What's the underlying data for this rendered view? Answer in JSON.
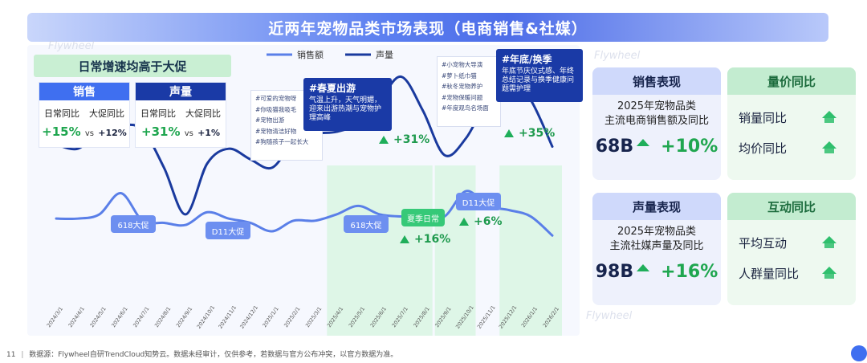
{
  "title": "近两年宠物品类市场表现（电商销售&社媒）",
  "subtitle": "日常增速均高于大促",
  "kpi": {
    "sales": {
      "head": "销售",
      "label_daily": "日常同比",
      "label_promo": "大促同比",
      "daily": "+15%",
      "vs": "vs",
      "promo": "+12%"
    },
    "volume": {
      "head": "声量",
      "label_daily": "日常同比",
      "label_promo": "大促同比",
      "daily": "+31%",
      "vs": "vs",
      "promo": "+1%"
    }
  },
  "annotations": {
    "spring_list": [
      "#可爱的宠物呀",
      "#你吸猫我吸毛",
      "#宠物出游",
      "#宠物清洁好物",
      "#狗随孩子一起长大"
    ],
    "spring_note_title": "#春夏出游",
    "spring_note_body": "气温上升，天气明媚，迎来出游热潮与宠物护理高峰",
    "autumn_list": [
      "#小宠物大导演",
      "#萝卜纸巾猫",
      "#秋冬宠物养护",
      "#宠物保暖问题",
      "#年度观鸟名场面"
    ],
    "year_note_title": "#年底/换季",
    "year_note_body": "年底节庆仪式感、年终总结记录与换季健康问题需护理",
    "bubble_618_a": "618大促",
    "bubble_d11_a": "D11大促",
    "bubble_618_b": "618大促",
    "bubble_summer": "夏季日常",
    "bubble_d11_b": "D11大促",
    "growth_31": "+31%",
    "growth_35": "+35%",
    "growth_16": "+16%",
    "growth_6": "+6%"
  },
  "right": {
    "sales_perf": {
      "head": "销售表现",
      "line1": "2025年宠物品类",
      "line2": "主流电商销售额及同比",
      "value": "68B",
      "growth": "+10%"
    },
    "price_yoy": {
      "head": "量价同比",
      "items": [
        "销量同比",
        "均价同比"
      ]
    },
    "voice_perf": {
      "head": "声量表现",
      "line1": "2025年宠物品类",
      "line2": "主流社媒声量及同比",
      "value": "98B",
      "growth": "+16%"
    },
    "interact_yoy": {
      "head": "互动同比",
      "items": [
        "平均互动",
        "人群量同比"
      ]
    }
  },
  "footer": {
    "page": "11",
    "source": "数据源：Flywheel自研TrendCloud知势云。数据未经审计，仅供参考，若数据与官方公布冲突，以官方数据为准。"
  },
  "watermark": "Flywheel",
  "colors": {
    "sales_line": "#5a7fe8",
    "volume_line": "#1a3a9e",
    "highlight": "#d6f5df",
    "green": "#1fae5a"
  },
  "chart_data": {
    "type": "line",
    "title": "近两年宠物品类市场表现（电商销售&社媒）",
    "categories": [
      "2024/3/1",
      "2024/4/1",
      "2024/5/1",
      "2024/6/1",
      "2024/7/1",
      "2024/8/1",
      "2024/9/1",
      "2024/10/1",
      "2024/11/1",
      "2024/12/1",
      "2025/1/1",
      "2025/2/1",
      "2025/3/1",
      "2025/4/1",
      "2025/5/1",
      "2025/6/1",
      "2025/7/1",
      "2025/8/1",
      "2025/9/1",
      "2025/10/1",
      "2025/11/1",
      "2025/12/1",
      "2026/1/1",
      "2026/2/1"
    ],
    "series": [
      {
        "name": "销售额",
        "values": [
          28,
          28,
          30,
          40,
          27,
          26,
          25,
          31,
          28,
          26,
          22,
          27,
          27,
          30,
          34,
          30,
          29,
          29,
          29,
          41,
          34,
          32,
          29,
          20
        ]
      },
      {
        "name": "声量",
        "values": [
          63,
          61,
          69,
          72,
          70,
          52,
          30,
          54,
          61,
          56,
          52,
          64,
          68,
          69,
          73,
          84,
          95,
          79,
          58,
          66,
          84,
          94,
          84,
          62
        ]
      }
    ],
    "legend": [
      "销售额",
      "声量"
    ],
    "highlight_ranges": [
      [
        "2025/4/1",
        "2025/8/1"
      ],
      [
        "2025/9/1",
        "2025/10/1"
      ],
      [
        "2025/12/1",
        "2026/2/1"
      ]
    ],
    "xlabel": "",
    "ylabel": "",
    "ylim": [
      0,
      110
    ]
  }
}
